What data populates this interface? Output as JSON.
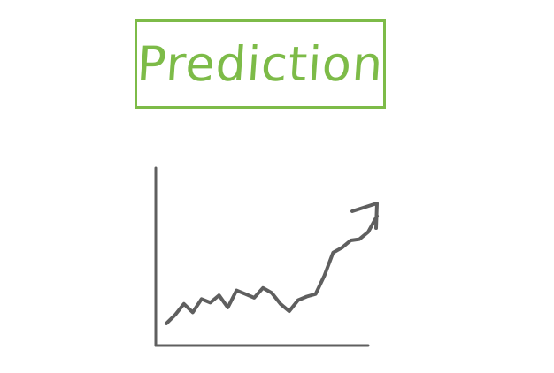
{
  "title": {
    "text": "Prediction",
    "color": "#7dbb48"
  },
  "sketch": {
    "stroke_color": "#5f5f5f",
    "icon": "rising-trend-arrow-icon",
    "trend": [
      3,
      10,
      19,
      12,
      23,
      20,
      26,
      16,
      30,
      27,
      24,
      32,
      28,
      19,
      13,
      22,
      25,
      27,
      42,
      61,
      65,
      71,
      72,
      78,
      91
    ]
  }
}
